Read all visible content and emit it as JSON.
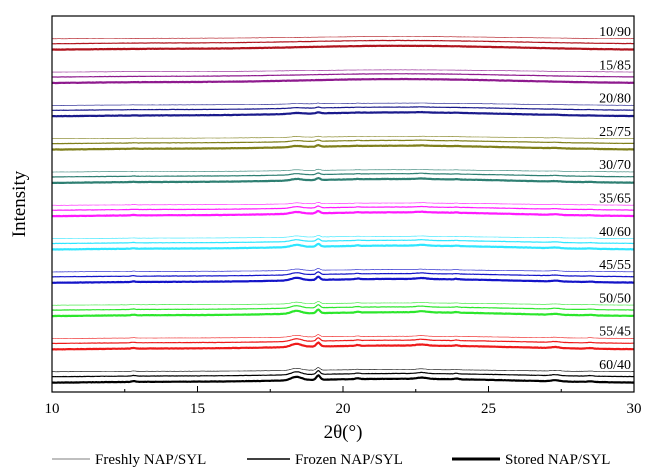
{
  "chart_data": {
    "type": "line",
    "title": "",
    "xlabel": "2θ(°)",
    "ylabel": "Intensity",
    "xlim": [
      10,
      30
    ],
    "xticks": [
      10,
      15,
      20,
      25,
      30
    ],
    "grid": false,
    "legend_position": "bottom",
    "legend": [
      {
        "name": "Freshly NAP/SYL",
        "style": "thin"
      },
      {
        "name": "Frozen NAP/SYL",
        "style": "medium"
      },
      {
        "name": "Stored NAP/SYL",
        "style": "thick"
      }
    ],
    "series": [
      {
        "name": "10/90",
        "color": "#b0141d"
      },
      {
        "name": "15/85",
        "color": "#8e1a8e"
      },
      {
        "name": "20/80",
        "color": "#1a1a8c"
      },
      {
        "name": "25/75",
        "color": "#7f7f1a"
      },
      {
        "name": "30/70",
        "color": "#2e7f72"
      },
      {
        "name": "35/65",
        "color": "#ff1aff"
      },
      {
        "name": "40/60",
        "color": "#2ee6ff"
      },
      {
        "name": "45/55",
        "color": "#1414c8"
      },
      {
        "name": "50/50",
        "color": "#2ce62c"
      },
      {
        "name": "55/45",
        "color": "#ee1a1a"
      },
      {
        "name": "60/40",
        "color": "#000000"
      }
    ]
  }
}
